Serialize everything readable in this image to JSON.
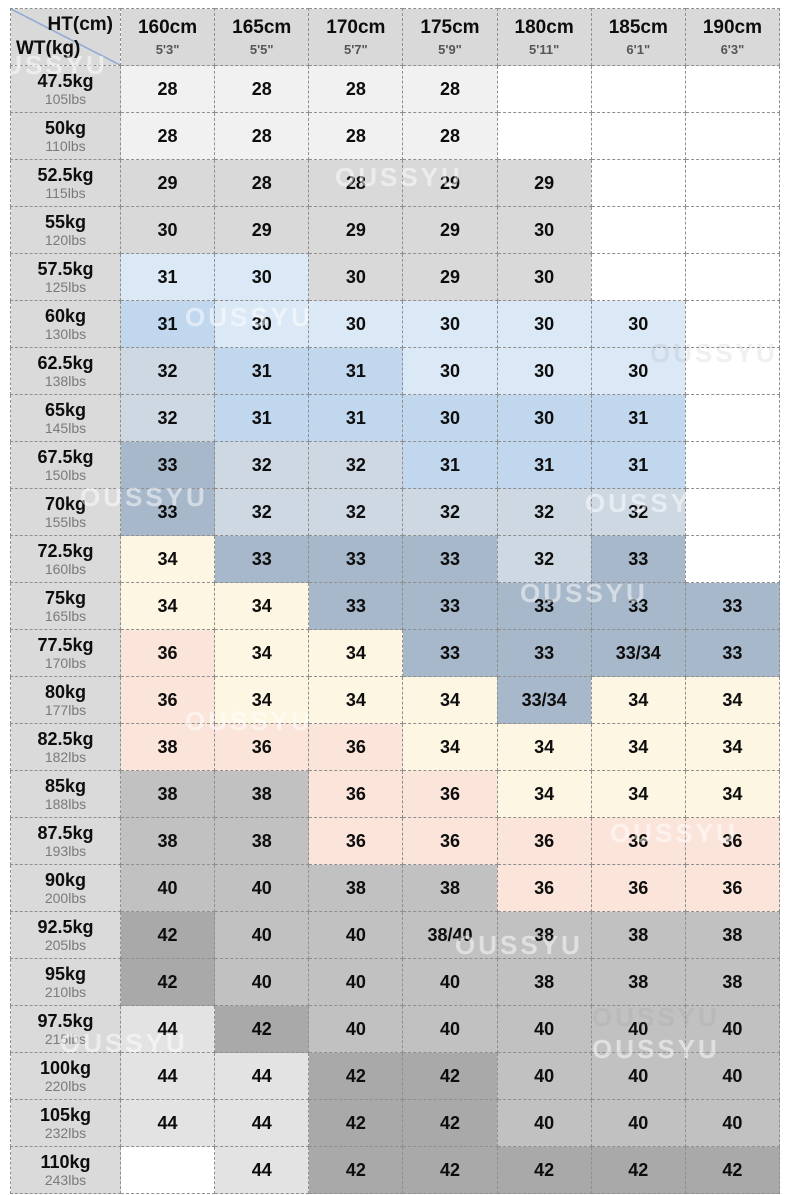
{
  "chart_data": {
    "type": "table",
    "title": "Jeans size chart by height and weight",
    "watermark": "OUSSYU",
    "corner": {
      "top": "HT(cm)",
      "bottom": "WT(kg)"
    },
    "columns": [
      {
        "cm": "160cm",
        "ft": "5'3\""
      },
      {
        "cm": "165cm",
        "ft": "5'5\""
      },
      {
        "cm": "170cm",
        "ft": "5'7\""
      },
      {
        "cm": "175cm",
        "ft": "5'9\""
      },
      {
        "cm": "180cm",
        "ft": "5'11\""
      },
      {
        "cm": "185cm",
        "ft": "6'1\""
      },
      {
        "cm": "190cm",
        "ft": "6'3\""
      }
    ],
    "palette": {
      "white": "#ffffff",
      "near_white": "#f1f1f1",
      "gray": "#d9d9d9",
      "pale_blue": "#dbe8f5",
      "blue": "#c0d7ee",
      "blue_gray_light": "#cdd8e3",
      "blue_gray": "#a7b8ca",
      "cream": "#fdf6e2",
      "pink": "#fbe4da",
      "gray_light": "#e3e3e3",
      "gray_mid": "#c1c1c1",
      "gray_dark": "#a9a9a9"
    },
    "rows": [
      {
        "kg": "47.5kg",
        "lbs": "105lbs",
        "cells": [
          {
            "v": "28",
            "c": "near_white"
          },
          {
            "v": "28",
            "c": "near_white"
          },
          {
            "v": "28",
            "c": "near_white"
          },
          {
            "v": "28",
            "c": "near_white"
          },
          {
            "v": "",
            "c": "white"
          },
          {
            "v": "",
            "c": "white"
          },
          {
            "v": "",
            "c": "white"
          }
        ]
      },
      {
        "kg": "50kg",
        "lbs": "110lbs",
        "cells": [
          {
            "v": "28",
            "c": "near_white"
          },
          {
            "v": "28",
            "c": "near_white"
          },
          {
            "v": "28",
            "c": "near_white"
          },
          {
            "v": "28",
            "c": "near_white"
          },
          {
            "v": "",
            "c": "white"
          },
          {
            "v": "",
            "c": "white"
          },
          {
            "v": "",
            "c": "white"
          }
        ]
      },
      {
        "kg": "52.5kg",
        "lbs": "115lbs",
        "cells": [
          {
            "v": "29",
            "c": "gray"
          },
          {
            "v": "28",
            "c": "gray"
          },
          {
            "v": "28",
            "c": "gray"
          },
          {
            "v": "29",
            "c": "gray"
          },
          {
            "v": "29",
            "c": "gray"
          },
          {
            "v": "",
            "c": "white"
          },
          {
            "v": "",
            "c": "white"
          }
        ]
      },
      {
        "kg": "55kg",
        "lbs": "120lbs",
        "cells": [
          {
            "v": "30",
            "c": "gray"
          },
          {
            "v": "29",
            "c": "gray"
          },
          {
            "v": "29",
            "c": "gray"
          },
          {
            "v": "29",
            "c": "gray"
          },
          {
            "v": "30",
            "c": "gray"
          },
          {
            "v": "",
            "c": "white"
          },
          {
            "v": "",
            "c": "white"
          }
        ]
      },
      {
        "kg": "57.5kg",
        "lbs": "125lbs",
        "cells": [
          {
            "v": "31",
            "c": "pale_blue"
          },
          {
            "v": "30",
            "c": "pale_blue"
          },
          {
            "v": "30",
            "c": "gray"
          },
          {
            "v": "29",
            "c": "gray"
          },
          {
            "v": "30",
            "c": "gray"
          },
          {
            "v": "",
            "c": "white"
          },
          {
            "v": "",
            "c": "white"
          }
        ]
      },
      {
        "kg": "60kg",
        "lbs": "130lbs",
        "cells": [
          {
            "v": "31",
            "c": "blue"
          },
          {
            "v": "30",
            "c": "pale_blue"
          },
          {
            "v": "30",
            "c": "pale_blue"
          },
          {
            "v": "30",
            "c": "pale_blue"
          },
          {
            "v": "30",
            "c": "pale_blue"
          },
          {
            "v": "30",
            "c": "pale_blue"
          },
          {
            "v": "",
            "c": "white"
          }
        ]
      },
      {
        "kg": "62.5kg",
        "lbs": "138lbs",
        "cells": [
          {
            "v": "32",
            "c": "blue_gray_light"
          },
          {
            "v": "31",
            "c": "blue"
          },
          {
            "v": "31",
            "c": "blue"
          },
          {
            "v": "30",
            "c": "pale_blue"
          },
          {
            "v": "30",
            "c": "pale_blue"
          },
          {
            "v": "30",
            "c": "pale_blue"
          },
          {
            "v": "",
            "c": "white"
          }
        ]
      },
      {
        "kg": "65kg",
        "lbs": "145lbs",
        "cells": [
          {
            "v": "32",
            "c": "blue_gray_light"
          },
          {
            "v": "31",
            "c": "blue"
          },
          {
            "v": "31",
            "c": "blue"
          },
          {
            "v": "30",
            "c": "blue"
          },
          {
            "v": "30",
            "c": "blue"
          },
          {
            "v": "31",
            "c": "blue"
          },
          {
            "v": "",
            "c": "white"
          }
        ]
      },
      {
        "kg": "67.5kg",
        "lbs": "150lbs",
        "cells": [
          {
            "v": "33",
            "c": "blue_gray"
          },
          {
            "v": "32",
            "c": "blue_gray_light"
          },
          {
            "v": "32",
            "c": "blue_gray_light"
          },
          {
            "v": "31",
            "c": "blue"
          },
          {
            "v": "31",
            "c": "blue"
          },
          {
            "v": "31",
            "c": "blue"
          },
          {
            "v": "",
            "c": "white"
          }
        ]
      },
      {
        "kg": "70kg",
        "lbs": "155lbs",
        "cells": [
          {
            "v": "33",
            "c": "blue_gray"
          },
          {
            "v": "32",
            "c": "blue_gray_light"
          },
          {
            "v": "32",
            "c": "blue_gray_light"
          },
          {
            "v": "32",
            "c": "blue_gray_light"
          },
          {
            "v": "32",
            "c": "blue_gray_light"
          },
          {
            "v": "32",
            "c": "blue_gray_light"
          },
          {
            "v": "",
            "c": "white"
          }
        ]
      },
      {
        "kg": "72.5kg",
        "lbs": "160lbs",
        "cells": [
          {
            "v": "34",
            "c": "cream"
          },
          {
            "v": "33",
            "c": "blue_gray"
          },
          {
            "v": "33",
            "c": "blue_gray"
          },
          {
            "v": "33",
            "c": "blue_gray"
          },
          {
            "v": "32",
            "c": "blue_gray_light"
          },
          {
            "v": "33",
            "c": "blue_gray"
          },
          {
            "v": "",
            "c": "white"
          }
        ]
      },
      {
        "kg": "75kg",
        "lbs": "165lbs",
        "cells": [
          {
            "v": "34",
            "c": "cream"
          },
          {
            "v": "34",
            "c": "cream"
          },
          {
            "v": "33",
            "c": "blue_gray"
          },
          {
            "v": "33",
            "c": "blue_gray"
          },
          {
            "v": "33",
            "c": "blue_gray"
          },
          {
            "v": "33",
            "c": "blue_gray"
          },
          {
            "v": "33",
            "c": "blue_gray"
          }
        ]
      },
      {
        "kg": "77.5kg",
        "lbs": "170lbs",
        "cells": [
          {
            "v": "36",
            "c": "pink"
          },
          {
            "v": "34",
            "c": "cream"
          },
          {
            "v": "34",
            "c": "cream"
          },
          {
            "v": "33",
            "c": "blue_gray"
          },
          {
            "v": "33",
            "c": "blue_gray"
          },
          {
            "v": "33/34",
            "c": "blue_gray"
          },
          {
            "v": "33",
            "c": "blue_gray"
          }
        ]
      },
      {
        "kg": "80kg",
        "lbs": "177lbs",
        "cells": [
          {
            "v": "36",
            "c": "pink"
          },
          {
            "v": "34",
            "c": "cream"
          },
          {
            "v": "34",
            "c": "cream"
          },
          {
            "v": "34",
            "c": "cream"
          },
          {
            "v": "33/34",
            "c": "blue_gray"
          },
          {
            "v": "34",
            "c": "cream"
          },
          {
            "v": "34",
            "c": "cream"
          }
        ]
      },
      {
        "kg": "82.5kg",
        "lbs": "182lbs",
        "cells": [
          {
            "v": "38",
            "c": "pink"
          },
          {
            "v": "36",
            "c": "pink"
          },
          {
            "v": "36",
            "c": "pink"
          },
          {
            "v": "34",
            "c": "cream"
          },
          {
            "v": "34",
            "c": "cream"
          },
          {
            "v": "34",
            "c": "cream"
          },
          {
            "v": "34",
            "c": "cream"
          }
        ]
      },
      {
        "kg": "85kg",
        "lbs": "188lbs",
        "cells": [
          {
            "v": "38",
            "c": "gray_mid"
          },
          {
            "v": "38",
            "c": "gray_mid"
          },
          {
            "v": "36",
            "c": "pink"
          },
          {
            "v": "36",
            "c": "pink"
          },
          {
            "v": "34",
            "c": "cream"
          },
          {
            "v": "34",
            "c": "cream"
          },
          {
            "v": "34",
            "c": "cream"
          }
        ]
      },
      {
        "kg": "87.5kg",
        "lbs": "193lbs",
        "cells": [
          {
            "v": "38",
            "c": "gray_mid"
          },
          {
            "v": "38",
            "c": "gray_mid"
          },
          {
            "v": "36",
            "c": "pink"
          },
          {
            "v": "36",
            "c": "pink"
          },
          {
            "v": "36",
            "c": "pink"
          },
          {
            "v": "36",
            "c": "pink"
          },
          {
            "v": "36",
            "c": "pink"
          }
        ]
      },
      {
        "kg": "90kg",
        "lbs": "200lbs",
        "cells": [
          {
            "v": "40",
            "c": "gray_mid"
          },
          {
            "v": "40",
            "c": "gray_mid"
          },
          {
            "v": "38",
            "c": "gray_mid"
          },
          {
            "v": "38",
            "c": "gray_mid"
          },
          {
            "v": "36",
            "c": "pink"
          },
          {
            "v": "36",
            "c": "pink"
          },
          {
            "v": "36",
            "c": "pink"
          }
        ]
      },
      {
        "kg": "92.5kg",
        "lbs": "205lbs",
        "cells": [
          {
            "v": "42",
            "c": "gray_dark"
          },
          {
            "v": "40",
            "c": "gray_mid"
          },
          {
            "v": "40",
            "c": "gray_mid"
          },
          {
            "v": "38/40",
            "c": "gray_mid"
          },
          {
            "v": "38",
            "c": "gray_mid"
          },
          {
            "v": "38",
            "c": "gray_mid"
          },
          {
            "v": "38",
            "c": "gray_mid"
          }
        ]
      },
      {
        "kg": "95kg",
        "lbs": "210lbs",
        "cells": [
          {
            "v": "42",
            "c": "gray_dark"
          },
          {
            "v": "40",
            "c": "gray_mid"
          },
          {
            "v": "40",
            "c": "gray_mid"
          },
          {
            "v": "40",
            "c": "gray_mid"
          },
          {
            "v": "38",
            "c": "gray_mid"
          },
          {
            "v": "38",
            "c": "gray_mid"
          },
          {
            "v": "38",
            "c": "gray_mid"
          }
        ]
      },
      {
        "kg": "97.5kg",
        "lbs": "215lbs",
        "cells": [
          {
            "v": "44",
            "c": "gray_light"
          },
          {
            "v": "42",
            "c": "gray_dark"
          },
          {
            "v": "40",
            "c": "gray_mid"
          },
          {
            "v": "40",
            "c": "gray_mid"
          },
          {
            "v": "40",
            "c": "gray_mid"
          },
          {
            "v": "40",
            "c": "gray_mid"
          },
          {
            "v": "40",
            "c": "gray_mid"
          }
        ]
      },
      {
        "kg": "100kg",
        "lbs": "220lbs",
        "cells": [
          {
            "v": "44",
            "c": "gray_light"
          },
          {
            "v": "44",
            "c": "gray_light"
          },
          {
            "v": "42",
            "c": "gray_dark"
          },
          {
            "v": "42",
            "c": "gray_dark"
          },
          {
            "v": "40",
            "c": "gray_mid"
          },
          {
            "v": "40",
            "c": "gray_mid"
          },
          {
            "v": "40",
            "c": "gray_mid"
          }
        ]
      },
      {
        "kg": "105kg",
        "lbs": "232lbs",
        "cells": [
          {
            "v": "44",
            "c": "gray_light"
          },
          {
            "v": "44",
            "c": "gray_light"
          },
          {
            "v": "42",
            "c": "gray_dark"
          },
          {
            "v": "42",
            "c": "gray_dark"
          },
          {
            "v": "40",
            "c": "gray_mid"
          },
          {
            "v": "40",
            "c": "gray_mid"
          },
          {
            "v": "40",
            "c": "gray_mid"
          }
        ]
      },
      {
        "kg": "110kg",
        "lbs": "243lbs",
        "cells": [
          {
            "v": "",
            "c": "white"
          },
          {
            "v": "44",
            "c": "gray_light"
          },
          {
            "v": "42",
            "c": "gray_dark"
          },
          {
            "v": "42",
            "c": "gray_dark"
          },
          {
            "v": "42",
            "c": "gray_dark"
          },
          {
            "v": "42",
            "c": "gray_dark"
          },
          {
            "v": "42",
            "c": "gray_dark"
          }
        ]
      }
    ]
  }
}
